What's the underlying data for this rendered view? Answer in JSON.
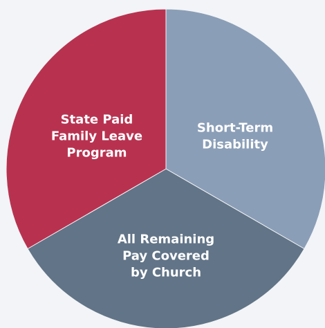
{
  "chart_data": {
    "type": "pie",
    "categories": [
      "Short-Term\nDisability",
      "All Remaining\nPay Covered\nby Church",
      "State Paid\nFamily Leave\nProgram"
    ],
    "values": [
      33.3,
      33.3,
      33.3
    ],
    "colors": [
      "#8b9eb7",
      "#627487",
      "#b83250"
    ]
  }
}
